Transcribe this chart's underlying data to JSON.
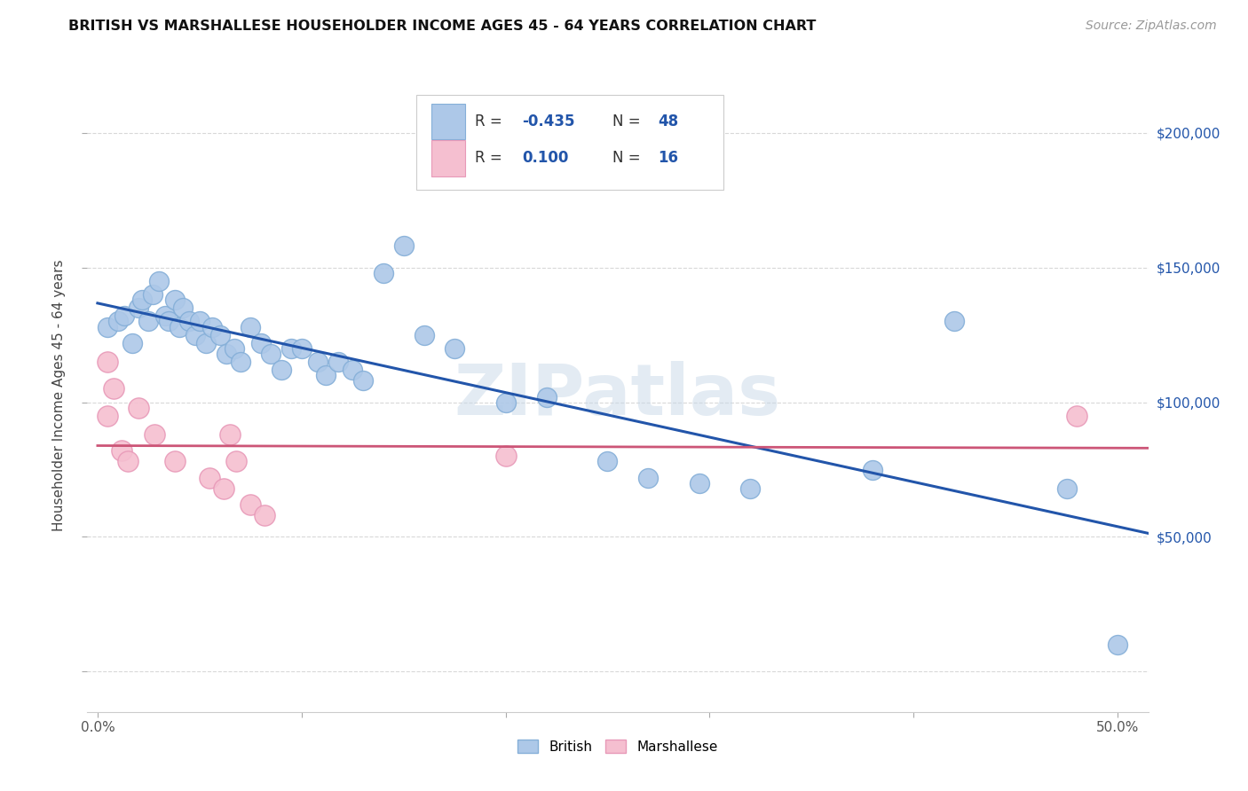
{
  "title": "BRITISH VS MARSHALLESE HOUSEHOLDER INCOME AGES 45 - 64 YEARS CORRELATION CHART",
  "source": "Source: ZipAtlas.com",
  "ylabel": "Householder Income Ages 45 - 64 years",
  "x_ticks": [
    0.0,
    0.1,
    0.2,
    0.3,
    0.4,
    0.5
  ],
  "x_tick_labels": [
    "0.0%",
    "",
    "",
    "",
    "",
    "50.0%"
  ],
  "y_tick_labels_right": [
    "$50,000",
    "$100,000",
    "$150,000",
    "$200,000"
  ],
  "xlim": [
    -0.005,
    0.515
  ],
  "ylim": [
    -15000,
    220000
  ],
  "british_color": "#adc8e8",
  "marshallese_color": "#f5bfd0",
  "british_edge_color": "#85afd8",
  "marshallese_edge_color": "#e899b8",
  "trend_british_color": "#2255aa",
  "trend_marshallese_color": "#cc5577",
  "watermark": "ZIPatlas",
  "background_color": "#ffffff",
  "grid_color": "#d8d8d8",
  "british_x": [
    0.005,
    0.01,
    0.013,
    0.017,
    0.02,
    0.022,
    0.025,
    0.027,
    0.03,
    0.033,
    0.035,
    0.038,
    0.04,
    0.042,
    0.045,
    0.048,
    0.05,
    0.053,
    0.056,
    0.06,
    0.063,
    0.067,
    0.07,
    0.075,
    0.08,
    0.085,
    0.09,
    0.095,
    0.1,
    0.108,
    0.112,
    0.118,
    0.125,
    0.13,
    0.14,
    0.15,
    0.16,
    0.175,
    0.2,
    0.22,
    0.25,
    0.27,
    0.295,
    0.32,
    0.38,
    0.42,
    0.475,
    0.5
  ],
  "british_y": [
    128000,
    130000,
    132000,
    122000,
    135000,
    138000,
    130000,
    140000,
    145000,
    132000,
    130000,
    138000,
    128000,
    135000,
    130000,
    125000,
    130000,
    122000,
    128000,
    125000,
    118000,
    120000,
    115000,
    128000,
    122000,
    118000,
    112000,
    120000,
    120000,
    115000,
    110000,
    115000,
    112000,
    108000,
    148000,
    158000,
    125000,
    120000,
    100000,
    102000,
    78000,
    72000,
    70000,
    68000,
    75000,
    130000,
    68000,
    10000
  ],
  "marshallese_x": [
    0.005,
    0.005,
    0.008,
    0.012,
    0.015,
    0.02,
    0.028,
    0.038,
    0.055,
    0.062,
    0.065,
    0.068,
    0.075,
    0.082,
    0.2,
    0.48
  ],
  "marshallese_y": [
    115000,
    95000,
    105000,
    82000,
    78000,
    98000,
    88000,
    78000,
    72000,
    68000,
    88000,
    78000,
    62000,
    58000,
    80000,
    95000
  ]
}
